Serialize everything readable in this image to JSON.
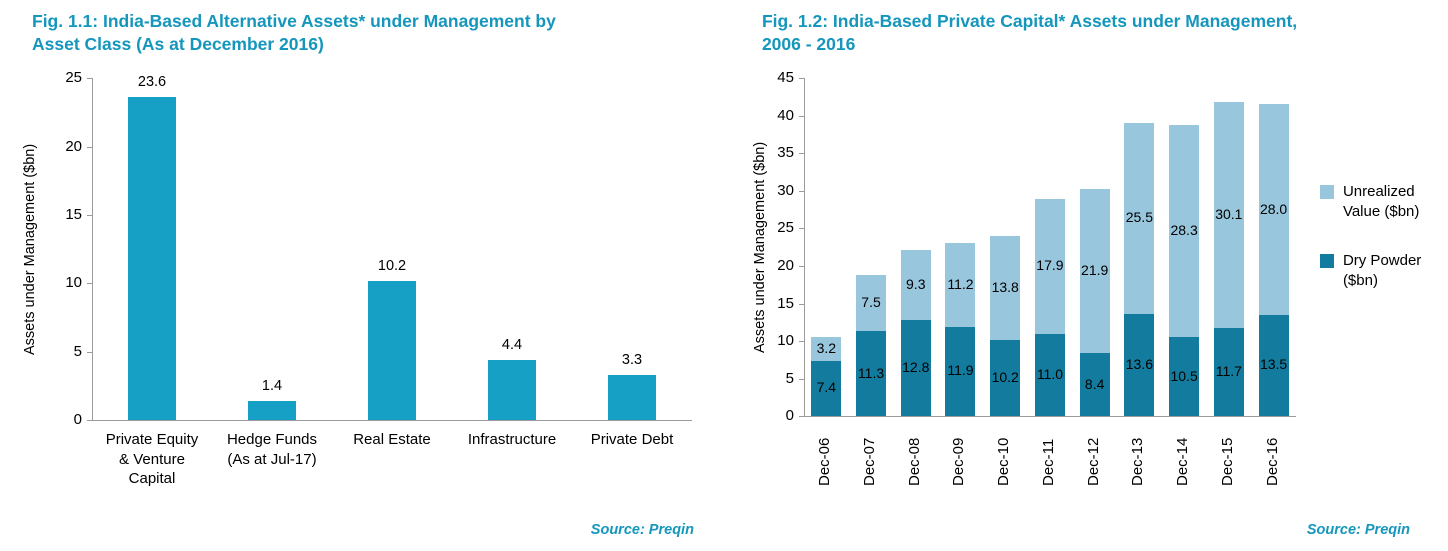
{
  "colors": {
    "accent": "#1596BC",
    "axis_line": "#9b9b9b",
    "fig1_bar": "#16A0C6",
    "dry_powder": "#137C9E",
    "unrealized_value": "#98C6DC"
  },
  "chart_data": [
    {
      "type": "bar",
      "title": "Fig. 1.1: India-Based Alternative Assets* under Management by\nAsset Class (As at December 2016)",
      "ylabel": "Assets under Management ($bn)",
      "xlabel": "",
      "categories": [
        "Private Equity\n& Venture\nCapital",
        "Hedge Funds\n(As at Jul-17)",
        "Real Estate",
        "Infrastructure",
        "Private Debt"
      ],
      "values": [
        23.6,
        1.4,
        10.2,
        4.4,
        3.3
      ],
      "ylim": [
        0,
        25
      ],
      "ytick_step": 5,
      "bar_color": "#16A0C6",
      "grid": false,
      "legend_position": "none",
      "source": "Source: Preqin"
    },
    {
      "type": "stacked-bar",
      "title": "Fig. 1.2: India-Based Private Capital* Assets under Management,\n2006 - 2016",
      "ylabel": "Assets under Management ($bn)",
      "xlabel": "",
      "categories": [
        "Dec-06",
        "Dec-07",
        "Dec-08",
        "Dec-09",
        "Dec-10",
        "Dec-11",
        "Dec-12",
        "Dec-13",
        "Dec-14",
        "Dec-15",
        "Dec-16"
      ],
      "series": [
        {
          "name": "Dry Powder ($bn)",
          "color": "#137C9E",
          "values": [
            7.4,
            11.3,
            12.8,
            11.9,
            10.2,
            11.0,
            8.4,
            13.6,
            10.5,
            11.7,
            13.5
          ]
        },
        {
          "name": "Unrealized Value ($bn)",
          "color": "#98C6DC",
          "values": [
            3.2,
            7.5,
            9.3,
            11.2,
            13.8,
            17.9,
            21.9,
            25.5,
            28.3,
            30.1,
            28.0
          ]
        }
      ],
      "ylim": [
        0,
        45
      ],
      "ytick_step": 5,
      "grid": false,
      "legend_position": "right",
      "legend_order": [
        "Unrealized Value ($bn)",
        "Dry Powder ($bn)"
      ],
      "source": "Source: Preqin"
    }
  ]
}
